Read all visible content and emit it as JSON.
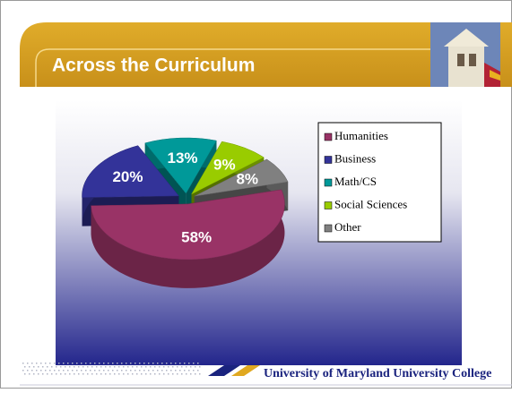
{
  "chart_data": {
    "type": "pie",
    "title": "Across the Curriculum",
    "categories": [
      "Humanities",
      "Business",
      "Math/CS",
      "Social Sciences",
      "Other"
    ],
    "values": [
      58,
      20,
      13,
      9,
      8
    ],
    "value_labels": [
      "58%",
      "20%",
      "13%",
      "9%",
      "8%"
    ],
    "colors": [
      "#993366",
      "#333399",
      "#009999",
      "#99cc00",
      "#808080"
    ]
  },
  "footer": "University of Maryland University College"
}
